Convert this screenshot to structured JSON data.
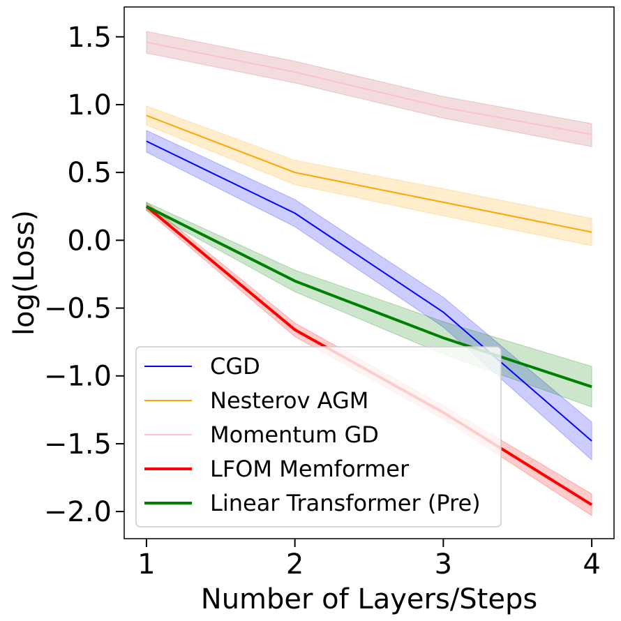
{
  "chart_data": {
    "type": "line",
    "xlabel": "Number of Layers/Steps",
    "ylabel": "log(Loss)",
    "x": [
      1,
      2,
      3,
      4
    ],
    "xticks": [
      "1",
      "2",
      "3",
      "4"
    ],
    "xlim": [
      0.85,
      4.15
    ],
    "ylim": [
      -2.2,
      1.72
    ],
    "yticks": [
      1.5,
      1.0,
      0.5,
      0.0,
      -0.5,
      -1.0,
      -1.5,
      -2.0
    ],
    "ytick_labels": [
      "1.5",
      "1.0",
      "0.5",
      "0.0",
      "−0.5",
      "−1.0",
      "−1.5",
      "−2.0"
    ],
    "legend_position": "lower-left",
    "series": [
      {
        "name": "CGD",
        "color": "#0000ff",
        "line_width": "thin",
        "values": [
          0.73,
          0.2,
          -0.53,
          -1.48
        ],
        "band_low": [
          0.65,
          0.1,
          -0.64,
          -1.62
        ],
        "band_high": [
          0.81,
          0.3,
          -0.42,
          -1.34
        ]
      },
      {
        "name": "Nesterov AGM",
        "color": "#ffa500",
        "line_width": "thin",
        "values": [
          0.92,
          0.5,
          0.28,
          0.06
        ],
        "band_low": [
          0.85,
          0.41,
          0.18,
          -0.04
        ],
        "band_high": [
          0.99,
          0.59,
          0.38,
          0.16
        ]
      },
      {
        "name": "Momentum GD",
        "color": "#ffc0cb",
        "band_color": "#c0505a",
        "line_width": "thin",
        "values": [
          1.46,
          1.24,
          0.98,
          0.78
        ],
        "band_low": [
          1.38,
          1.16,
          0.9,
          0.69
        ],
        "band_high": [
          1.54,
          1.32,
          1.06,
          0.86
        ]
      },
      {
        "name": "LFOM Memformer",
        "color": "#ff0000",
        "line_width": "thick",
        "values": [
          0.25,
          -0.66,
          -1.27,
          -1.95
        ],
        "band_low": [
          0.22,
          -0.71,
          -1.32,
          -2.03
        ],
        "band_high": [
          0.28,
          -0.61,
          -1.22,
          -1.87
        ]
      },
      {
        "name": "Linear Transformer (Pre)",
        "color": "#008000",
        "line_width": "thick",
        "values": [
          0.25,
          -0.3,
          -0.72,
          -1.08
        ],
        "band_low": [
          0.22,
          -0.38,
          -0.84,
          -1.23
        ],
        "band_high": [
          0.28,
          -0.22,
          -0.6,
          -0.93
        ]
      }
    ]
  }
}
